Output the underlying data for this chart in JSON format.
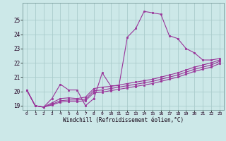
{
  "background_color": "#cce8e8",
  "grid_color": "#aacccc",
  "line_color": "#993399",
  "xlabel": "Windchill (Refroidissement éolien,°C)",
  "xlim": [
    -0.5,
    23.5
  ],
  "ylim": [
    18.7,
    26.2
  ],
  "yticks": [
    19,
    20,
    21,
    22,
    23,
    24,
    25
  ],
  "xticks": [
    0,
    1,
    2,
    3,
    4,
    5,
    6,
    7,
    8,
    9,
    10,
    11,
    12,
    13,
    14,
    15,
    16,
    17,
    18,
    19,
    20,
    21,
    22,
    23
  ],
  "series1_x": [
    0,
    1,
    2,
    3,
    4,
    5,
    6,
    7,
    8,
    9,
    10,
    11,
    12,
    13,
    14,
    15,
    16,
    17,
    18,
    19,
    20,
    21,
    22,
    23
  ],
  "series1_y": [
    20.1,
    19.0,
    18.9,
    19.5,
    20.5,
    20.1,
    20.1,
    19.0,
    19.5,
    21.3,
    20.4,
    20.4,
    23.8,
    24.4,
    25.6,
    25.5,
    25.4,
    23.9,
    23.7,
    23.0,
    22.7,
    22.2,
    22.2,
    22.3
  ],
  "series2_x": [
    0,
    1,
    2,
    3,
    4,
    5,
    6,
    7,
    8,
    9,
    10,
    11,
    12,
    13,
    14,
    15,
    16,
    17,
    18,
    19,
    20,
    21,
    22,
    23
  ],
  "series2_y": [
    20.1,
    19.0,
    18.9,
    19.2,
    19.5,
    19.55,
    19.5,
    19.6,
    20.2,
    20.3,
    20.35,
    20.45,
    20.55,
    20.65,
    20.75,
    20.85,
    21.0,
    21.15,
    21.3,
    21.5,
    21.7,
    21.85,
    22.0,
    22.2
  ],
  "series3_x": [
    0,
    1,
    2,
    3,
    4,
    5,
    6,
    7,
    8,
    9,
    10,
    11,
    12,
    13,
    14,
    15,
    16,
    17,
    18,
    19,
    20,
    21,
    22,
    23
  ],
  "series3_y": [
    20.1,
    19.0,
    18.9,
    19.1,
    19.35,
    19.4,
    19.4,
    19.45,
    20.05,
    20.1,
    20.2,
    20.3,
    20.4,
    20.5,
    20.6,
    20.7,
    20.85,
    21.0,
    21.15,
    21.35,
    21.55,
    21.7,
    21.85,
    22.1
  ],
  "series4_x": [
    0,
    1,
    2,
    3,
    4,
    5,
    6,
    7,
    8,
    9,
    10,
    11,
    12,
    13,
    14,
    15,
    16,
    17,
    18,
    19,
    20,
    21,
    22,
    23
  ],
  "series4_y": [
    20.1,
    19.0,
    18.9,
    19.05,
    19.25,
    19.3,
    19.3,
    19.35,
    19.9,
    19.95,
    20.05,
    20.15,
    20.25,
    20.35,
    20.45,
    20.55,
    20.7,
    20.85,
    21.0,
    21.2,
    21.4,
    21.55,
    21.7,
    21.95
  ]
}
